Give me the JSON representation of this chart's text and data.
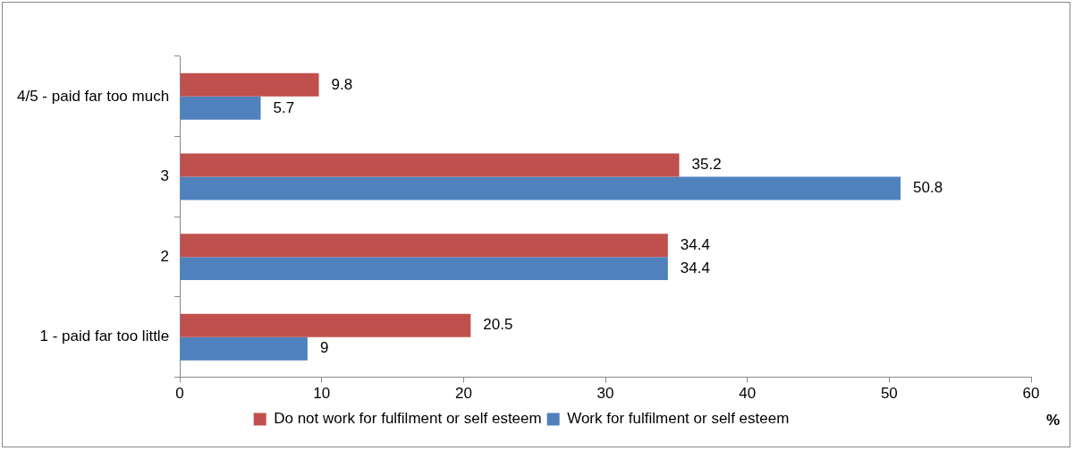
{
  "chart_data": {
    "type": "bar",
    "orientation": "horizontal",
    "xlabel": "%",
    "categories": [
      "4/5 - paid far too much",
      "3",
      "2",
      "1 - paid far too little"
    ],
    "series": [
      {
        "name": "Do not work for fulfilment or self esteem",
        "color": "#c0504d",
        "values": [
          9.8,
          35.2,
          34.4,
          20.5
        ]
      },
      {
        "name": "Work for fulfilment or self esteem",
        "color": "#4f81bd",
        "values": [
          5.7,
          50.8,
          34.4,
          9
        ]
      }
    ],
    "xlim": [
      0,
      60
    ],
    "xticks": [
      0,
      10,
      20,
      30,
      40,
      50,
      60
    ],
    "grid": false,
    "legend": "bottom",
    "data_labels": true
  }
}
